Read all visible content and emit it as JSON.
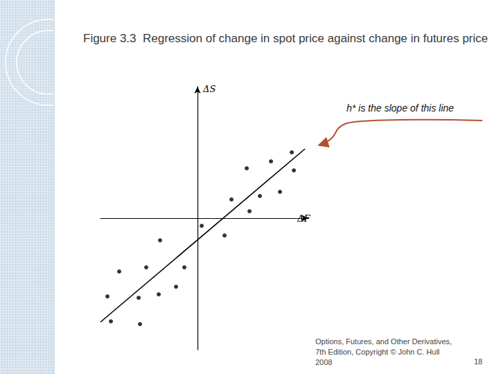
{
  "chart_data": {
    "type": "scatter",
    "title": "Figure 3.3  Regression of change in spot price against change in futures price",
    "xlabel": "ΔF",
    "ylabel": "ΔS",
    "annotation": "h* is the slope of this line",
    "footer": [
      "Options, Futures, and Other Derivatives,",
      "7th Edition, Copyright © John C. Hull",
      "2008"
    ],
    "page": 18,
    "x": [
      13.6,
      7.1,
      10.6,
      13.9,
      4.9,
      9.0,
      11.9,
      7.5,
      0.6,
      3.9,
      -5.4,
      -11.3,
      -7.4,
      -1.9,
      -13.0,
      -8.5,
      -5.6,
      -3.1,
      -12.5,
      -8.3
    ],
    "y": [
      9.5,
      7.2,
      8.2,
      6.9,
      2.7,
      3.2,
      3.8,
      1.0,
      -1.1,
      -2.5,
      -3.2,
      -7.7,
      -7.1,
      -7.1,
      -11.3,
      -11.5,
      -11.0,
      -9.9,
      -14.9,
      -15.3
    ],
    "regression_line": {
      "x": [
        -14,
        15.5
      ],
      "y": [
        -15,
        10
      ]
    },
    "color": "#000000",
    "xlim": [
      -14,
      16
    ],
    "ylim": [
      -19,
      19
    ],
    "tick_labels": false,
    "grid": false
  }
}
